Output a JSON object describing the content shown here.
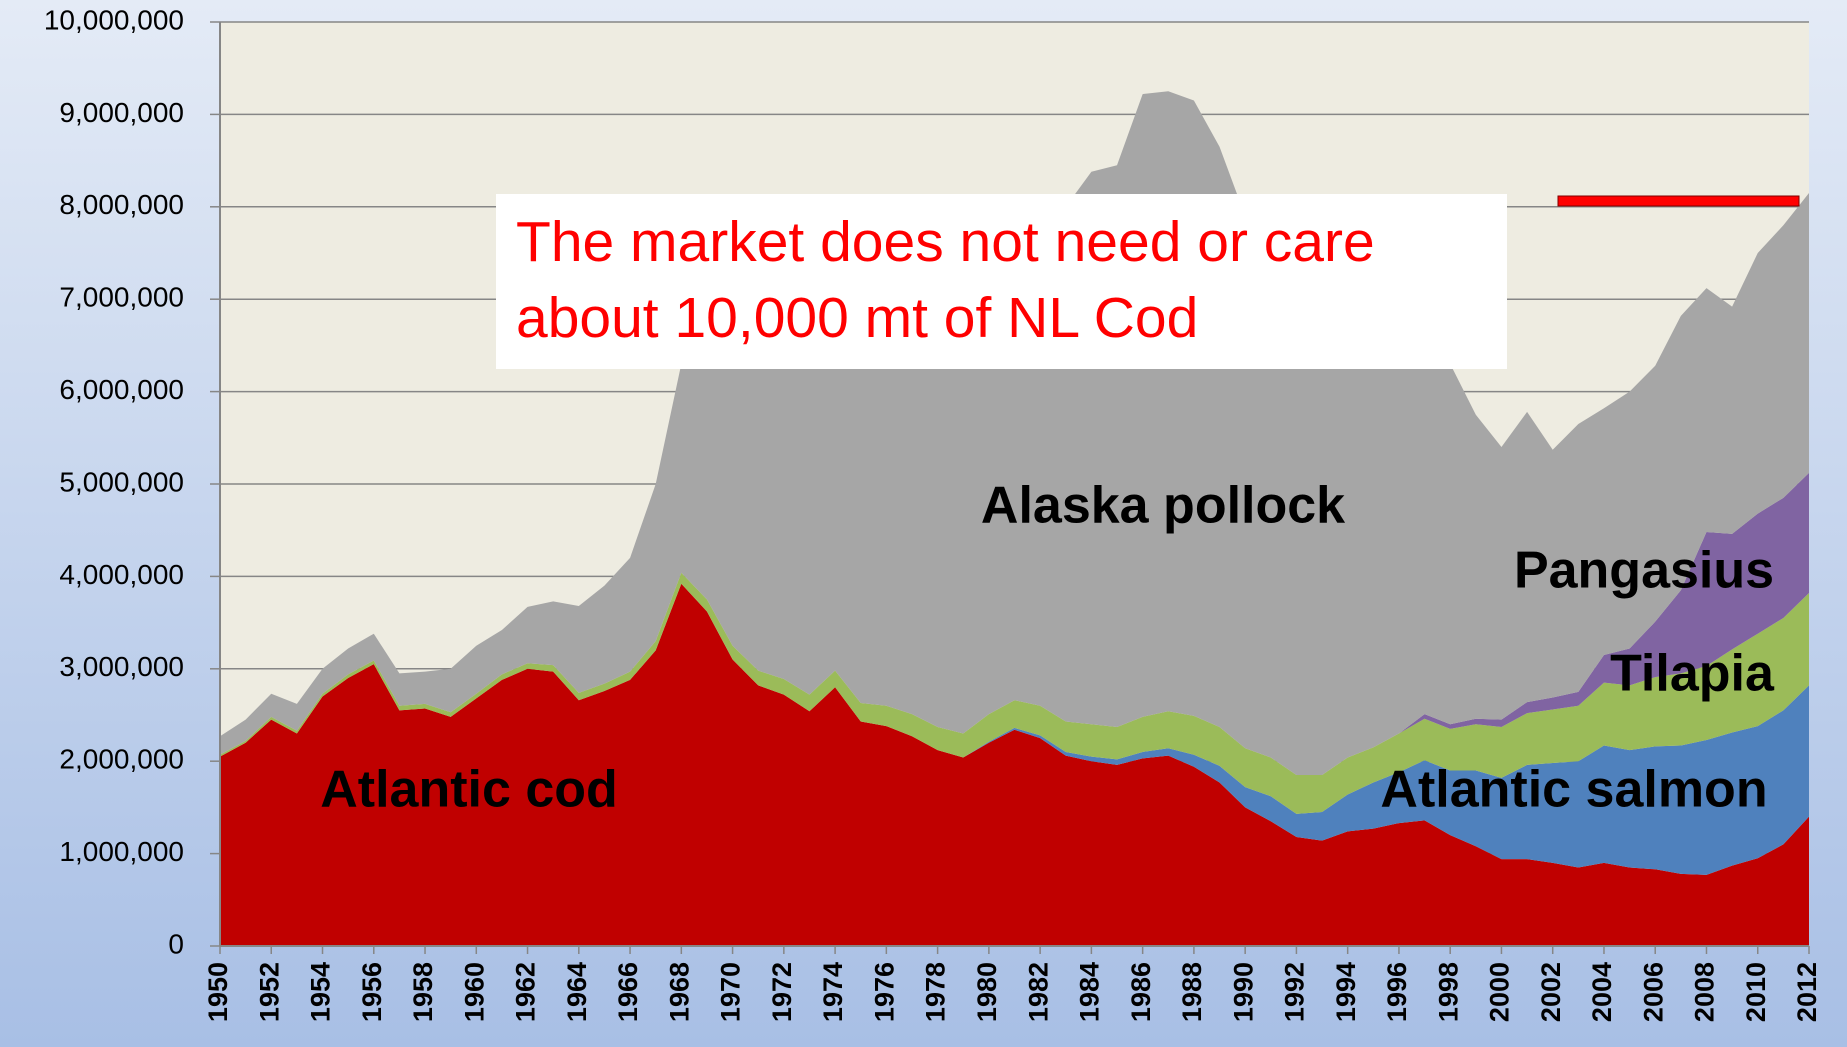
{
  "chart_data": {
    "type": "stacked_area",
    "annotation": [
      "The market does not need or care",
      "about 10,000 mt of NL Cod"
    ],
    "x": [
      1950,
      1951,
      1952,
      1953,
      1954,
      1955,
      1956,
      1957,
      1958,
      1959,
      1960,
      1961,
      1962,
      1963,
      1964,
      1965,
      1966,
      1967,
      1968,
      1969,
      1970,
      1971,
      1972,
      1973,
      1974,
      1975,
      1976,
      1977,
      1978,
      1979,
      1980,
      1981,
      1982,
      1983,
      1984,
      1985,
      1986,
      1987,
      1988,
      1989,
      1990,
      1991,
      1992,
      1993,
      1994,
      1995,
      1996,
      1997,
      1998,
      1999,
      2000,
      2001,
      2002,
      2003,
      2004,
      2005,
      2006,
      2007,
      2008,
      2009,
      2010,
      2011,
      2012
    ],
    "xlim": [
      1950,
      2012
    ],
    "xticks": [
      1950,
      1952,
      1954,
      1956,
      1958,
      1960,
      1962,
      1964,
      1966,
      1968,
      1970,
      1972,
      1974,
      1976,
      1978,
      1980,
      1982,
      1984,
      1986,
      1988,
      1990,
      1992,
      1994,
      1996,
      1998,
      2000,
      2002,
      2004,
      2006,
      2008,
      2010,
      2012
    ],
    "ylim": [
      0,
      10000000
    ],
    "yticks": [
      0,
      {
        "value": 1000000,
        "label": "1,000,000"
      },
      {
        "value": 2000000,
        "label": "2,000,000"
      },
      {
        "value": 3000000,
        "label": "3,000,000"
      },
      {
        "value": 4000000,
        "label": "4,000,000"
      },
      {
        "value": 5000000,
        "label": "5,000,000"
      },
      {
        "value": 6000000,
        "label": "6,000,000"
      },
      {
        "value": 7000000,
        "label": "7,000,000"
      },
      {
        "value": 8000000,
        "label": "8,000,000"
      },
      {
        "value": 9000000,
        "label": "9,000,000"
      },
      {
        "value": 10000000,
        "label": "10,000,000"
      }
    ],
    "grid": true,
    "series": [
      {
        "name": "Atlantic cod",
        "color": "#c00000",
        "values": [
          2050000,
          2200000,
          2450000,
          2300000,
          2700000,
          2900000,
          3050000,
          2550000,
          2570000,
          2480000,
          2680000,
          2880000,
          3000000,
          2970000,
          2660000,
          2760000,
          2880000,
          3200000,
          3920000,
          3620000,
          3100000,
          2820000,
          2720000,
          2540000,
          2800000,
          2430000,
          2380000,
          2270000,
          2120000,
          2040000,
          2200000,
          2340000,
          2250000,
          2060000,
          2000000,
          1960000,
          2030000,
          2060000,
          1940000,
          1770000,
          1500000,
          1350000,
          1180000,
          1140000,
          1240000,
          1270000,
          1330000,
          1360000,
          1200000,
          1080000,
          940000,
          940000,
          900000,
          850000,
          900000,
          850000,
          830000,
          780000,
          770000,
          870000,
          950000,
          1100000,
          1400000
        ]
      },
      {
        "name": "Atlantic salmon",
        "color": "#4f81bd",
        "values": [
          0,
          0,
          0,
          0,
          0,
          0,
          0,
          0,
          0,
          0,
          0,
          0,
          0,
          0,
          0,
          0,
          0,
          0,
          0,
          0,
          0,
          0,
          0,
          0,
          0,
          0,
          0,
          0,
          0,
          0,
          10000,
          20000,
          30000,
          40000,
          50000,
          60000,
          70000,
          80000,
          130000,
          180000,
          220000,
          270000,
          250000,
          310000,
          400000,
          500000,
          550000,
          650000,
          700000,
          820000,
          880000,
          1020000,
          1080000,
          1150000,
          1270000,
          1270000,
          1330000,
          1390000,
          1460000,
          1440000,
          1430000,
          1450000,
          1420000
        ]
      },
      {
        "name": "Tilapia",
        "color": "#9bbb59",
        "values": [
          20000,
          20000,
          30000,
          30000,
          30000,
          40000,
          40000,
          50000,
          50000,
          50000,
          50000,
          60000,
          60000,
          70000,
          80000,
          80000,
          90000,
          100000,
          120000,
          130000,
          150000,
          160000,
          170000,
          180000,
          180000,
          200000,
          220000,
          240000,
          250000,
          260000,
          300000,
          300000,
          320000,
          330000,
          350000,
          350000,
          380000,
          400000,
          420000,
          420000,
          420000,
          420000,
          420000,
          400000,
          400000,
          380000,
          420000,
          450000,
          450000,
          500000,
          550000,
          560000,
          580000,
          600000,
          680000,
          700000,
          750000,
          780000,
          800000,
          900000,
          1000000,
          1000000,
          1000000
        ]
      },
      {
        "name": "Pangasius",
        "color": "#8064a2",
        "values": [
          0,
          0,
          0,
          0,
          0,
          0,
          0,
          0,
          0,
          0,
          0,
          0,
          0,
          0,
          0,
          0,
          0,
          0,
          0,
          0,
          0,
          0,
          0,
          0,
          0,
          0,
          0,
          0,
          0,
          0,
          0,
          0,
          0,
          0,
          0,
          0,
          0,
          0,
          0,
          0,
          0,
          0,
          0,
          0,
          0,
          0,
          0,
          50000,
          50000,
          60000,
          80000,
          120000,
          130000,
          150000,
          300000,
          400000,
          600000,
          900000,
          1450000,
          1250000,
          1300000,
          1300000,
          1300000
        ]
      },
      {
        "name": "Alaska pollock",
        "color": "#a6a6a6",
        "values": [
          200000,
          230000,
          250000,
          290000,
          270000,
          280000,
          290000,
          350000,
          350000,
          470000,
          520000,
          480000,
          610000,
          690000,
          940000,
          1060000,
          1230000,
          1700000,
          2260000,
          3250000,
          4150000,
          4820000,
          4710000,
          4480000,
          4020000,
          4170000,
          4300000,
          4190000,
          4030000,
          3950000,
          4290000,
          4540000,
          5000000,
          5570000,
          5980000,
          6080000,
          6740000,
          6710000,
          6660000,
          6280000,
          5760000,
          5460000,
          5150000,
          4750000,
          4360000,
          4150000,
          4200000,
          4290000,
          3900000,
          3290000,
          2950000,
          3140000,
          2680000,
          2900000,
          2670000,
          2780000,
          2770000,
          2970000,
          2640000,
          2460000,
          2820000,
          2950000,
          3030000
        ]
      }
    ]
  }
}
